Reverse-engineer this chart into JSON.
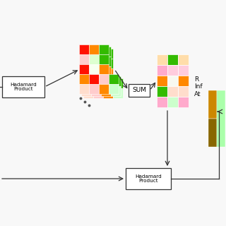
{
  "bg_color": "#f8f8f8",
  "hadamard1_label": "Hadamard\nProduct",
  "sum_label": "SUM",
  "hadamard2_label": "Hadamard\nProduct",
  "right_label": "R\nInf\nAt",
  "grid1_rows": [
    [
      "#ff1100",
      "#ff8800",
      "#33bb00"
    ],
    [
      "#ffcccc",
      "#ddffd0",
      "#33bb00"
    ],
    [
      "#ff1100",
      "#f8fff0",
      "#ff8800"
    ],
    [
      "#ff8800",
      "#ff1100",
      "#ffcccc",
      "#33bb00"
    ],
    [
      "#ffddcc",
      "#ffcccc",
      "#ff8800",
      "#ccffcc"
    ]
  ],
  "grid2_rows": [
    [
      "#ffddaa",
      "#33bb00"
    ],
    [
      "#ffaacc",
      "#ffccdd"
    ],
    [
      "#ff8800",
      "#f8f8f0"
    ],
    [
      "#33bb00",
      "#ffddcc"
    ],
    [
      "#ffaacc",
      "#ccffcc"
    ]
  ],
  "grid2_3col_rows": [
    [
      "#ffddaa",
      "#33bb00",
      "#ffddaa"
    ],
    [
      "#ffaacc",
      "#ffccdd",
      "#ffccdd"
    ],
    [
      "#ff8800",
      "#f8f8f0",
      "#ff8800"
    ],
    [
      "#33bb00",
      "#ffddcc",
      "#ffddcc"
    ],
    [
      "#ffaacc",
      "#ccffcc",
      "#ffaacc"
    ]
  ],
  "strip_right": [
    "#ff8800",
    "#886600",
    "#ffcc66"
  ],
  "strip_right2": [
    "#ccffcc"
  ]
}
